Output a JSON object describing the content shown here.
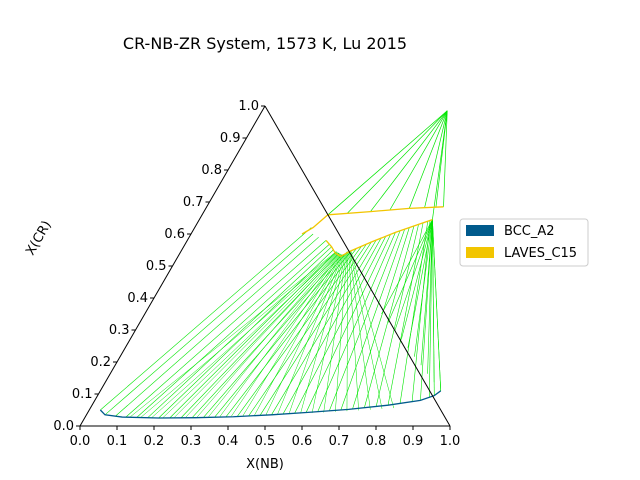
{
  "chart_data": {
    "type": "ternary",
    "title": "CR-NB-ZR System, 1573 K, Lu 2015",
    "xlabel": "X(NB)",
    "ylabel": "X(CR)",
    "xlim": [
      0,
      1
    ],
    "ylim": [
      0,
      1
    ],
    "x_ticks": [
      "0.0",
      "0.1",
      "0.2",
      "0.3",
      "0.4",
      "0.5",
      "0.6",
      "0.7",
      "0.8",
      "0.9",
      "1.0"
    ],
    "y_ticks": [
      "0.0",
      "0.1",
      "0.2",
      "0.3",
      "0.4",
      "0.5",
      "0.6",
      "0.7",
      "0.8",
      "0.9",
      "1.0"
    ],
    "legend": {
      "position": "right",
      "entries": [
        {
          "name": "BCC_A2",
          "color": "#005a8c"
        },
        {
          "name": "LAVES_C15",
          "color": "#f2c500"
        }
      ]
    },
    "tieline_color": "#00e600",
    "phase_boundaries": [
      {
        "phase": "BCC_A2",
        "color": "#005a8c",
        "points": [
          [
            0.03,
            0.05
          ],
          [
            0.05,
            0.035
          ],
          [
            0.1,
            0.028
          ],
          [
            0.2,
            0.025
          ],
          [
            0.3,
            0.026
          ],
          [
            0.4,
            0.029
          ],
          [
            0.5,
            0.035
          ],
          [
            0.6,
            0.043
          ],
          [
            0.7,
            0.052
          ],
          [
            0.8,
            0.065
          ],
          [
            0.88,
            0.08
          ],
          [
            0.91,
            0.095
          ],
          [
            0.92,
            0.11
          ]
        ]
      },
      {
        "phase": "LAVES_C15",
        "color": "#f2c500",
        "points": [
          [
            0.375,
            0.58
          ],
          [
            0.4,
            0.56
          ],
          [
            0.42,
            0.54
          ],
          [
            0.44,
            0.53
          ],
          [
            0.455,
            0.545
          ],
          [
            0.5,
            0.575
          ],
          [
            0.55,
            0.605
          ],
          [
            0.6,
            0.63
          ],
          [
            0.63,
            0.645
          ]
        ]
      },
      {
        "phase": "LAVES_C15",
        "color": "#f2c500",
        "points": [
          [
            0.34,
            0.66
          ],
          [
            0.32,
            0.62
          ],
          [
            0.3,
            0.6
          ]
        ]
      },
      {
        "phase": "LAVES_C15",
        "color": "#f2c500",
        "points": [
          [
            0.34,
            0.66
          ],
          [
            0.45,
            0.67
          ],
          [
            0.55,
            0.68
          ],
          [
            0.64,
            0.685
          ]
        ]
      }
    ],
    "tie_fan_points": {
      "bcc_side": [
        [
          0.03,
          0.05
        ],
        [
          0.05,
          0.035
        ],
        [
          0.08,
          0.03
        ],
        [
          0.11,
          0.028
        ],
        [
          0.14,
          0.027
        ],
        [
          0.17,
          0.026
        ],
        [
          0.2,
          0.025
        ],
        [
          0.23,
          0.025
        ],
        [
          0.26,
          0.025
        ],
        [
          0.29,
          0.026
        ],
        [
          0.32,
          0.026
        ],
        [
          0.35,
          0.027
        ],
        [
          0.38,
          0.028
        ],
        [
          0.41,
          0.029
        ],
        [
          0.44,
          0.031
        ],
        [
          0.47,
          0.033
        ],
        [
          0.5,
          0.035
        ],
        [
          0.53,
          0.037
        ],
        [
          0.56,
          0.04
        ],
        [
          0.59,
          0.042
        ],
        [
          0.62,
          0.045
        ],
        [
          0.65,
          0.048
        ],
        [
          0.68,
          0.05
        ],
        [
          0.71,
          0.053
        ],
        [
          0.74,
          0.057
        ],
        [
          0.77,
          0.061
        ],
        [
          0.8,
          0.065
        ],
        [
          0.83,
          0.07
        ],
        [
          0.86,
          0.075
        ],
        [
          0.88,
          0.08
        ],
        [
          0.9,
          0.088
        ],
        [
          0.91,
          0.095
        ],
        [
          0.92,
          0.11
        ]
      ],
      "laves_side": [
        [
          0.315,
          0.62
        ],
        [
          0.33,
          0.6
        ],
        [
          0.35,
          0.59
        ],
        [
          0.375,
          0.58
        ],
        [
          0.39,
          0.568
        ],
        [
          0.4,
          0.56
        ],
        [
          0.41,
          0.552
        ],
        [
          0.42,
          0.545
        ],
        [
          0.43,
          0.54
        ],
        [
          0.44,
          0.535
        ],
        [
          0.45,
          0.545
        ],
        [
          0.46,
          0.55
        ],
        [
          0.47,
          0.556
        ],
        [
          0.48,
          0.562
        ],
        [
          0.49,
          0.568
        ],
        [
          0.5,
          0.575
        ],
        [
          0.51,
          0.58
        ],
        [
          0.52,
          0.586
        ],
        [
          0.53,
          0.592
        ],
        [
          0.54,
          0.598
        ],
        [
          0.55,
          0.605
        ],
        [
          0.56,
          0.61
        ],
        [
          0.57,
          0.615
        ],
        [
          0.58,
          0.62
        ],
        [
          0.59,
          0.625
        ],
        [
          0.6,
          0.63
        ],
        [
          0.61,
          0.634
        ],
        [
          0.62,
          0.64
        ],
        [
          0.625,
          0.642
        ],
        [
          0.63,
          0.645
        ],
        [
          0.63,
          0.645
        ],
        [
          0.63,
          0.645
        ],
        [
          0.63,
          0.645
        ]
      ]
    },
    "top_fan": {
      "apex": [
        0.5,
        0.985
      ],
      "targets": [
        [
          0.34,
          0.66
        ],
        [
          0.39,
          0.665
        ],
        [
          0.45,
          0.67
        ],
        [
          0.5,
          0.675
        ],
        [
          0.55,
          0.68
        ],
        [
          0.59,
          0.683
        ],
        [
          0.62,
          0.684
        ],
        [
          0.64,
          0.685
        ],
        [
          0.63,
          0.645
        ]
      ]
    },
    "grid": false
  }
}
